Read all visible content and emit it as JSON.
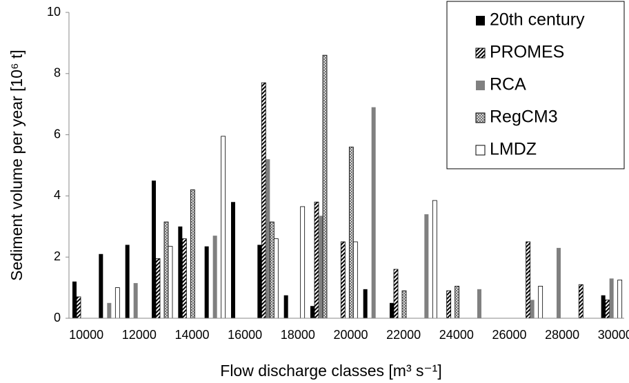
{
  "chart_data": {
    "type": "bar",
    "xlabel": "Flow discharge classes [m³ s⁻¹]",
    "ylabel": "Sediment volume per year [10⁶ t]",
    "categories": [
      10000,
      null,
      12000,
      null,
      14000,
      null,
      16000,
      null,
      18000,
      null,
      20000,
      null,
      22000,
      null,
      24000,
      null,
      26000,
      null,
      28000,
      null,
      30000
    ],
    "ylim": [
      0,
      10
    ],
    "yticks": [
      0,
      2,
      4,
      6,
      8,
      10
    ],
    "grid": false,
    "legend": "upper right",
    "series": [
      {
        "name": "20th century",
        "color": "#000000",
        "pattern": "solid",
        "values": [
          1.2,
          2.1,
          2.4,
          4.5,
          3.0,
          2.35,
          3.8,
          2.4,
          0.75,
          0.4,
          0,
          0.95,
          0.5,
          0,
          0,
          0,
          0,
          0,
          0,
          0,
          0.75
        ]
      },
      {
        "name": "PROMES",
        "color": "#000000",
        "pattern": "hatch",
        "values": [
          0.7,
          0,
          0,
          1.95,
          2.6,
          0,
          0,
          7.7,
          0,
          3.8,
          2.5,
          0,
          1.6,
          0,
          0.9,
          0,
          0,
          2.5,
          0,
          1.1,
          0.6
        ]
      },
      {
        "name": "RCA",
        "color": "#808080",
        "pattern": "solid",
        "values": [
          0,
          0.5,
          1.15,
          0,
          0,
          2.7,
          0,
          5.2,
          0,
          3.35,
          0,
          6.9,
          0,
          3.4,
          0,
          0.95,
          0,
          0.6,
          2.3,
          0,
          1.3
        ]
      },
      {
        "name": "RegCM3",
        "color": "#808080",
        "pattern": "crosshatch",
        "values": [
          0,
          0,
          0,
          3.15,
          4.2,
          0,
          0,
          3.15,
          0,
          8.6,
          5.6,
          0,
          0.9,
          0,
          1.05,
          0,
          0,
          0,
          0,
          0,
          0
        ]
      },
      {
        "name": "LMDZ",
        "color": "#ffffff",
        "pattern": "outline",
        "values": [
          0,
          1.0,
          0,
          2.35,
          0,
          5.95,
          0,
          2.6,
          3.65,
          0,
          2.5,
          0,
          0,
          3.85,
          0,
          0,
          0,
          1.05,
          0,
          0,
          1.25
        ]
      }
    ]
  }
}
